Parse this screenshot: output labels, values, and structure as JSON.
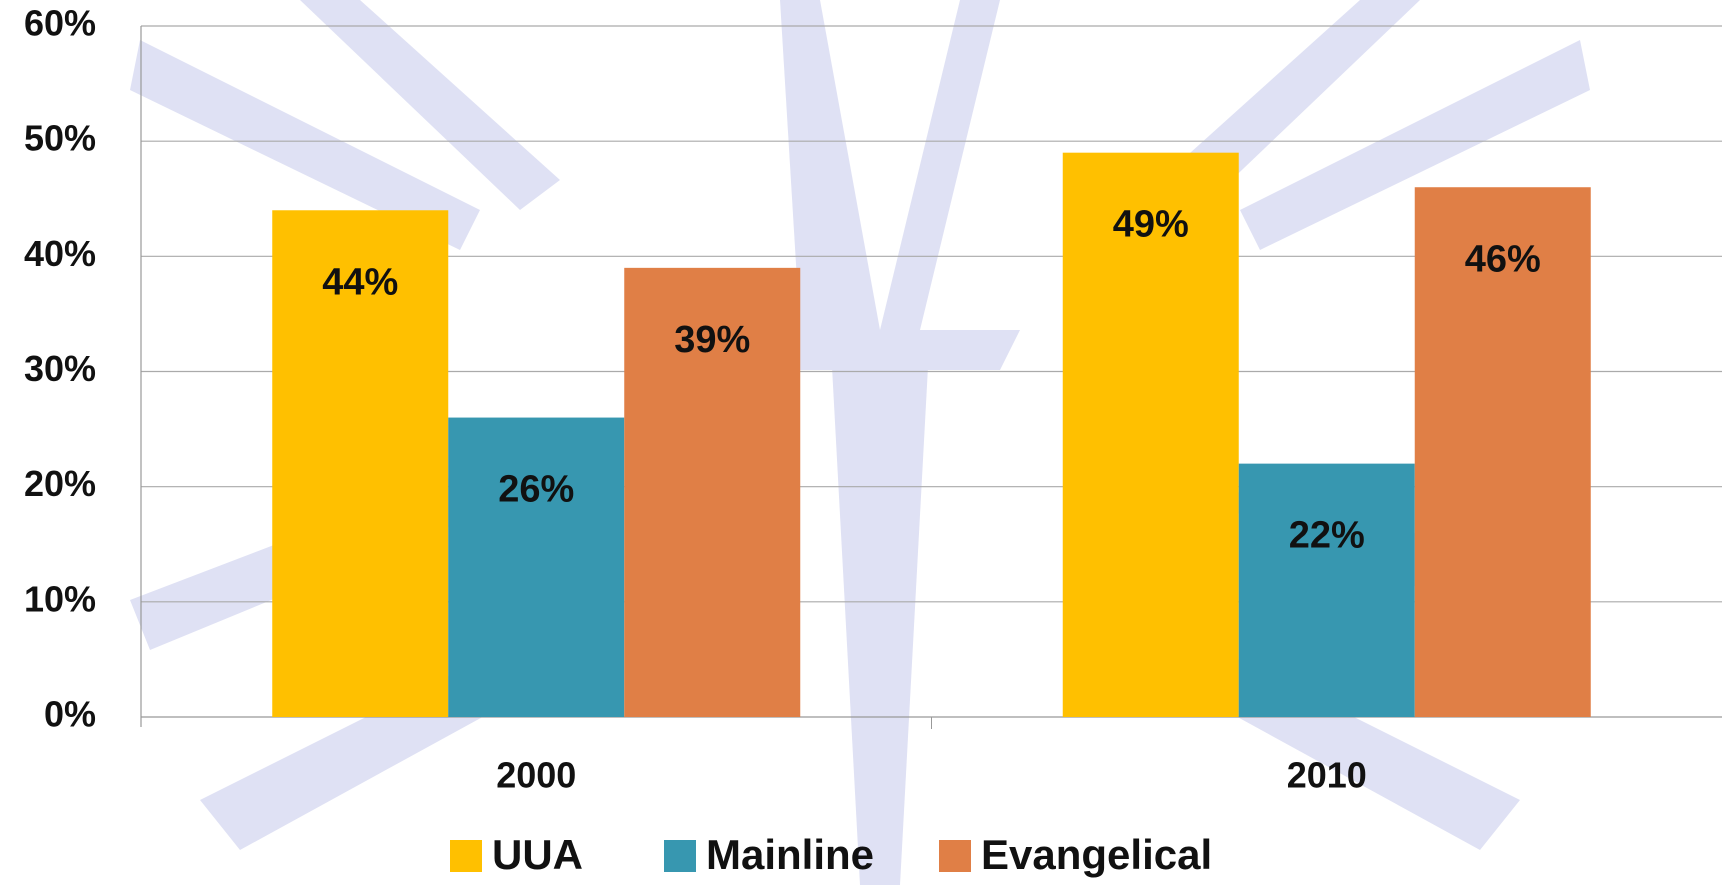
{
  "chart_data": {
    "type": "bar",
    "categories": [
      "2000",
      "2010"
    ],
    "series": [
      {
        "name": "UUA",
        "color": "#ffc000",
        "values": [
          44,
          49
        ],
        "value_labels": [
          "44%",
          "49%"
        ]
      },
      {
        "name": "Mainline",
        "color": "#3797b0",
        "values": [
          26,
          22
        ],
        "value_labels": [
          "26%",
          "22%"
        ]
      },
      {
        "name": "Evangelical",
        "color": "#e07f46",
        "values": [
          39,
          46
        ],
        "value_labels": [
          "39%",
          "46%"
        ]
      }
    ],
    "ylim": [
      0,
      60
    ],
    "yticks": [
      {
        "value": 0,
        "label": "0%"
      },
      {
        "value": 10,
        "label": "10%"
      },
      {
        "value": 20,
        "label": "20%"
      },
      {
        "value": 30,
        "label": "30%"
      },
      {
        "value": 40,
        "label": "40%"
      },
      {
        "value": 50,
        "label": "50%"
      },
      {
        "value": 60,
        "label": "60%"
      }
    ],
    "grid": true,
    "legend": "bottom"
  }
}
